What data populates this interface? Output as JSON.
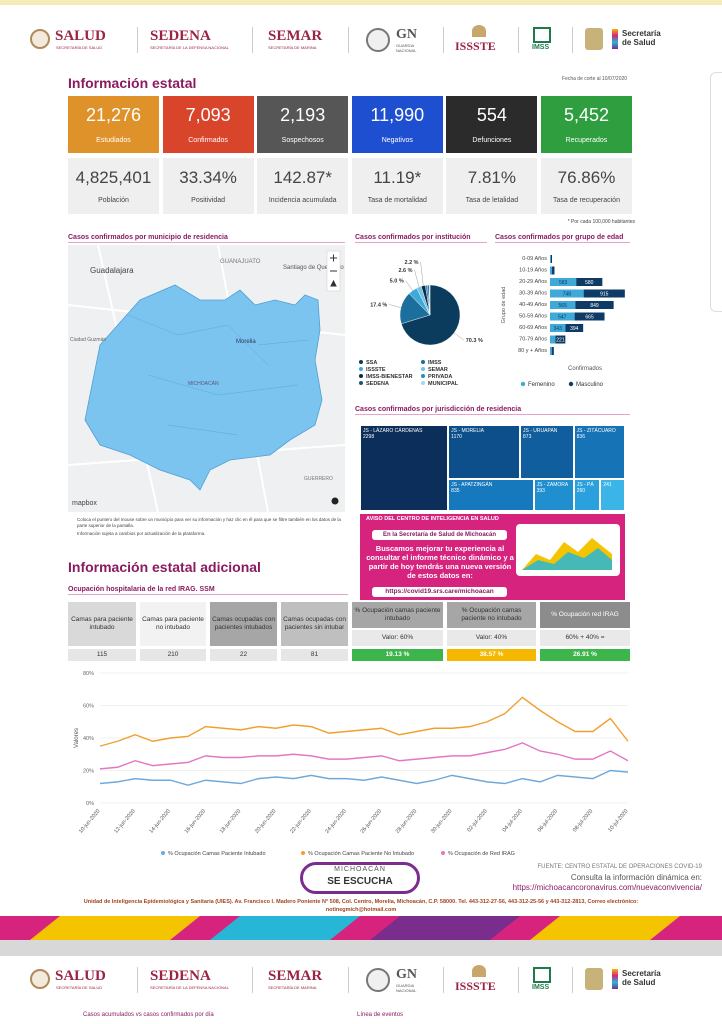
{
  "header": {
    "salud": "SALUD",
    "salud_sub": "SECRETARÍA DE SALUD",
    "sedena": "SEDENA",
    "sedena_sub": "SECRETARÍA DE LA DEFENSA NACIONAL",
    "semar": "SEMAR",
    "semar_sub": "SECRETARÍA DE MARINA",
    "gn": "GN",
    "gn_sub": "GUARDIA NACIONAL",
    "issste": "ISSSTE",
    "imss": "IMSS",
    "ssa": "Secretaría de Salud"
  },
  "title": "Información estatal",
  "date": "Fecha de corte al 10/07/2020",
  "cards": [
    {
      "value": "21,276",
      "label": "Estudiados",
      "color": "#e0922a"
    },
    {
      "value": "7,093",
      "label": "Confirmados",
      "color": "#d9452b"
    },
    {
      "value": "2,193",
      "label": "Sospechosos",
      "color": "#565656"
    },
    {
      "value": "11,990",
      "label": "Negativos",
      "color": "#1f4fd1"
    },
    {
      "value": "554",
      "label": "Defunciones",
      "color": "#2b2b2b"
    },
    {
      "value": "5,452",
      "label": "Recuperados",
      "color": "#2f9e3f"
    }
  ],
  "rates": [
    {
      "value": "4,825,401",
      "label": "Población"
    },
    {
      "value": "33.34%",
      "label": "Positividad"
    },
    {
      "value": "142.87*",
      "label": "Incidencia acumulada"
    },
    {
      "value": "11.19*",
      "label": "Tasa de mortalidad"
    },
    {
      "value": "7.81%",
      "label": "Tasa de letalidad"
    },
    {
      "value": "76.86%",
      "label": "Tasa de recuperación"
    }
  ],
  "rates_note": "* Por cada 100,000 habitantes",
  "map": {
    "title": "Casos confirmados por municipio de residencia",
    "labels": [
      "Guadalajara",
      "GUANAJUATO",
      "Santiago de Querétaro",
      "Ciudad Guzmán",
      "Morelia",
      "MICHOACÁN",
      "GUERRERO",
      "mapbox"
    ],
    "notes": [
      "Coloca el puntero del mouse sobre un municipio para ver su información y haz clic en él para que se filtre también en los datos de la parte superior de la pantalla.",
      "Información sujeta a cambios por actualización de la plataforma."
    ]
  },
  "chart_data": [
    {
      "type": "pie",
      "title": "Casos confirmados por institución",
      "categories": [
        "SSA",
        "IMSS",
        "ISSSTE",
        "SEMAR",
        "IMSS-BIENESTAR",
        "PRIVADA",
        "SEDENA",
        "MUNICIPAL"
      ],
      "values": [
        70.3,
        17.4,
        5.0,
        2.6,
        2.2,
        1.2,
        0.8,
        0.5
      ],
      "value_labels": [
        "70.3 %",
        "17.4 %",
        "5.0 %",
        "2.6 %",
        "2.2 %",
        null,
        null,
        null
      ],
      "colors": [
        "#0b3c5d",
        "#1c6e9c",
        "#3fa9d8",
        "#74c2e8",
        "#0a2a45",
        "#2b8cbe",
        "#1a5276",
        "#9fd9f2"
      ]
    },
    {
      "type": "bar",
      "orientation": "horizontal",
      "stacked": true,
      "title": "Casos confirmados por grupo de edad",
      "categories": [
        "0-09 Años",
        "10-19 Años",
        "20-29 Años",
        "30-39 Años",
        "40-49 Años",
        "50-59 Años",
        "60-69 Años",
        "70-79 Años",
        "80 y + Años"
      ],
      "series": [
        {
          "name": "Femenino",
          "color": "#3fa9d8",
          "values": [
            20,
            45,
            583,
            748,
            565,
            547,
            343,
            120,
            40
          ]
        },
        {
          "name": "Masculino",
          "color": "#0d3b66",
          "values": [
            25,
            55,
            580,
            915,
            849,
            665,
            394,
            221,
            45
          ]
        }
      ],
      "xlabel": "Confirmados",
      "ylabel": "Grupo de edad"
    },
    {
      "type": "treemap",
      "title": "Casos confirmados por jurisdicción de residencia",
      "categories": [
        "JS - LÁZARO CÁRDENAS",
        "JS - MORELIA",
        "JS - URUAPAN",
        "JS - ZITÁCUARO",
        "JS - APATZINGÁN",
        "JS - ZAMORA",
        "JS - PÁ",
        null
      ],
      "values": [
        2298,
        1170,
        873,
        836,
        835,
        393,
        260,
        241
      ],
      "colors": [
        "#0b2f5a",
        "#0d4f8b",
        "#115e9e",
        "#1673b5",
        "#1679bd",
        "#1f8fd0",
        "#2aa0dc",
        "#3bb5e8"
      ]
    },
    {
      "type": "line",
      "ylabel": "Valores",
      "ylim": [
        0,
        80
      ],
      "yticks": [
        {
          "value": 0,
          "label": "0%"
        },
        {
          "value": 20,
          "label": "20%"
        },
        {
          "value": 40,
          "label": "40%"
        },
        {
          "value": 60,
          "label": "60%"
        },
        {
          "value": 80,
          "label": "80%"
        }
      ],
      "grid": true,
      "categories": [
        "10-jun-2020",
        null,
        "12-jun-2020",
        null,
        "14-jun-2020",
        null,
        "16-jun-2020",
        null,
        "18-jun-2020",
        null,
        "20-jun-2020",
        null,
        "22-jun-2020",
        null,
        "24-jun-2020",
        null,
        "26-jun-2020",
        null,
        "28-jun-2020",
        null,
        "30-jun-2020",
        null,
        "02-jul-2020",
        null,
        "04-jul-2020",
        null,
        "06-jul-2020",
        null,
        "08-jul-2020",
        null,
        "10-jul-2020"
      ],
      "series": [
        {
          "name": "% Ocupación Camas Paciente Intubado",
          "color": "#6fa8dc",
          "values": [
            12,
            13,
            15,
            14,
            14,
            11,
            14,
            13,
            12,
            15,
            16,
            15,
            17,
            15,
            15,
            14,
            16,
            14,
            12,
            14,
            17,
            15,
            13,
            12,
            15,
            13,
            17,
            16,
            15,
            20,
            19
          ]
        },
        {
          "name": "% Ocupación Camas Paciente No Intubado",
          "color": "#f0a030",
          "values": [
            35,
            38,
            42,
            38,
            40,
            41,
            47,
            46,
            45,
            47,
            46,
            48,
            47,
            43,
            44,
            45,
            46,
            42,
            44,
            46,
            46,
            47,
            50,
            55,
            65,
            57,
            50,
            44,
            44,
            52,
            38
          ]
        },
        {
          "name": "% Ocupación de Red IRAG",
          "color": "#e377c2",
          "values": [
            21,
            22,
            26,
            23,
            24,
            25,
            29,
            28,
            28,
            29,
            29,
            30,
            29,
            27,
            27,
            28,
            29,
            26,
            27,
            28,
            29,
            29,
            31,
            33,
            37,
            32,
            30,
            27,
            27,
            32,
            26
          ]
        }
      ]
    }
  ],
  "notice": {
    "heading": "AVISO DEL CENTRO DE INTELIGENCIA EN SALUD",
    "badge": "En la Secretaría de Salud de Michoacán",
    "body": "Buscamos mejorar tu experiencia al consultar el informe técnico dinámico y a partir de hoy tendrás una nueva versión de estos datos en:",
    "url": "https://covid19.srs.care/michoacan"
  },
  "additional": {
    "title": "Información estatal adicional",
    "subtitle": "Ocupación hospitalaria de la red IRAG. SSM",
    "count_cells": [
      {
        "header": "Camas para paciente intubado",
        "value": "115"
      },
      {
        "header": "Camas para paciente no intubado",
        "value": "210"
      },
      {
        "header": "Camas ocupadas con pacientes intubados",
        "value": "22"
      },
      {
        "header": "Camas ocupadas con pacientes sin intubar",
        "value": "81"
      }
    ],
    "percent_cells": [
      {
        "header": "% Ocupación camas paciente intubado",
        "criteria": "Valor: 60%",
        "value": "19.13 %",
        "color": "#3cb54a"
      },
      {
        "header": "% Ocupación camas paciente no intubado",
        "criteria": "Valor: 40%",
        "value": "38.57 %",
        "color": "#f5b700"
      },
      {
        "header": "% Ocupación red IRAG",
        "criteria": "60% + 40% =",
        "value": "26.91 %",
        "color": "#3cb54a"
      }
    ]
  },
  "footer": {
    "campaign_top": "MICHOACÁN",
    "campaign_bottom": "SE ESCUCHA",
    "source": "FUENTE: CENTRO ESTATAL DE OPERACIONES COVID-19",
    "consult": "Consulta la información dinámica en:",
    "url": "https://michoacancoronavirus.com/nuevaconvivencia/",
    "address": "Unidad de Inteligencia Epidemiológica y Sanitaria (UIES). Av. Francisco I. Madero Poniente N° 508, Col. Centro, Morelia, Michoacán, C.P. 58000. Tel. 443-312-27-56, 443-312-25-56 y 443-312-2813, Correo electrónico: notinegmich@hotmail.com"
  },
  "next_page": {
    "headings": [
      "Casos acumulados vs casos confirmados por día",
      "Línea de eventos"
    ]
  }
}
